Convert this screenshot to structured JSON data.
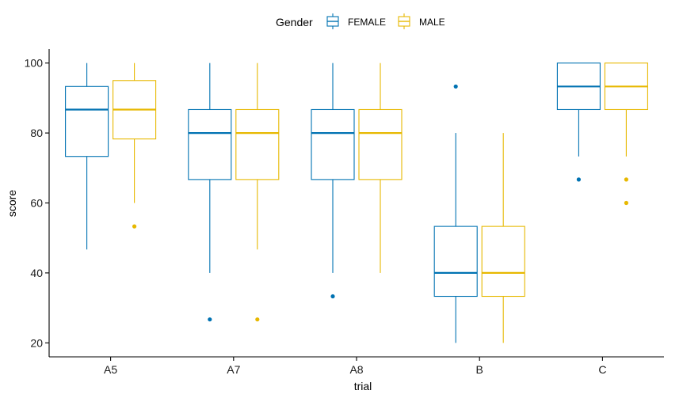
{
  "chart_data": {
    "type": "boxplot",
    "title": "",
    "xlabel": "trial",
    "ylabel": "score",
    "categories": [
      "A5",
      "A7",
      "A8",
      "B",
      "C"
    ],
    "ylim": [
      16,
      104
    ],
    "yticks": [
      20,
      40,
      60,
      80,
      100
    ],
    "grid": false,
    "legend": {
      "title": "Gender",
      "position": "top"
    },
    "series": [
      {
        "name": "FEMALE",
        "color": "#0072B2",
        "boxes": [
          {
            "category": "A5",
            "whisker_low": 46.7,
            "q1": 73.3,
            "median": 86.7,
            "q3": 93.3,
            "whisker_high": 100,
            "outliers": []
          },
          {
            "category": "A7",
            "whisker_low": 40,
            "q1": 66.7,
            "median": 80,
            "q3": 86.7,
            "whisker_high": 100,
            "outliers": [
              26.7
            ]
          },
          {
            "category": "A8",
            "whisker_low": 40,
            "q1": 66.7,
            "median": 80,
            "q3": 86.7,
            "whisker_high": 100,
            "outliers": [
              33.3
            ]
          },
          {
            "category": "B",
            "whisker_low": 20,
            "q1": 33.3,
            "median": 40,
            "q3": 53.3,
            "whisker_high": 80,
            "outliers": [
              93.3
            ]
          },
          {
            "category": "C",
            "whisker_low": 73.3,
            "q1": 86.7,
            "median": 93.3,
            "q3": 100,
            "whisker_high": 100,
            "outliers": [
              66.7
            ]
          }
        ]
      },
      {
        "name": "MALE",
        "color": "#E7B800",
        "boxes": [
          {
            "category": "A5",
            "whisker_low": 60,
            "q1": 78.3,
            "median": 86.7,
            "q3": 95,
            "whisker_high": 100,
            "outliers": [
              53.3
            ]
          },
          {
            "category": "A7",
            "whisker_low": 46.7,
            "q1": 66.7,
            "median": 80,
            "q3": 86.7,
            "whisker_high": 100,
            "outliers": [
              26.7
            ]
          },
          {
            "category": "A8",
            "whisker_low": 40,
            "q1": 66.7,
            "median": 80,
            "q3": 86.7,
            "whisker_high": 100,
            "outliers": []
          },
          {
            "category": "B",
            "whisker_low": 20,
            "q1": 33.3,
            "median": 40,
            "q3": 53.3,
            "whisker_high": 80,
            "outliers": []
          },
          {
            "category": "C",
            "whisker_low": 73.3,
            "q1": 86.7,
            "median": 93.3,
            "q3": 100,
            "whisker_high": 100,
            "outliers": [
              66.7,
              60
            ]
          }
        ]
      }
    ]
  }
}
